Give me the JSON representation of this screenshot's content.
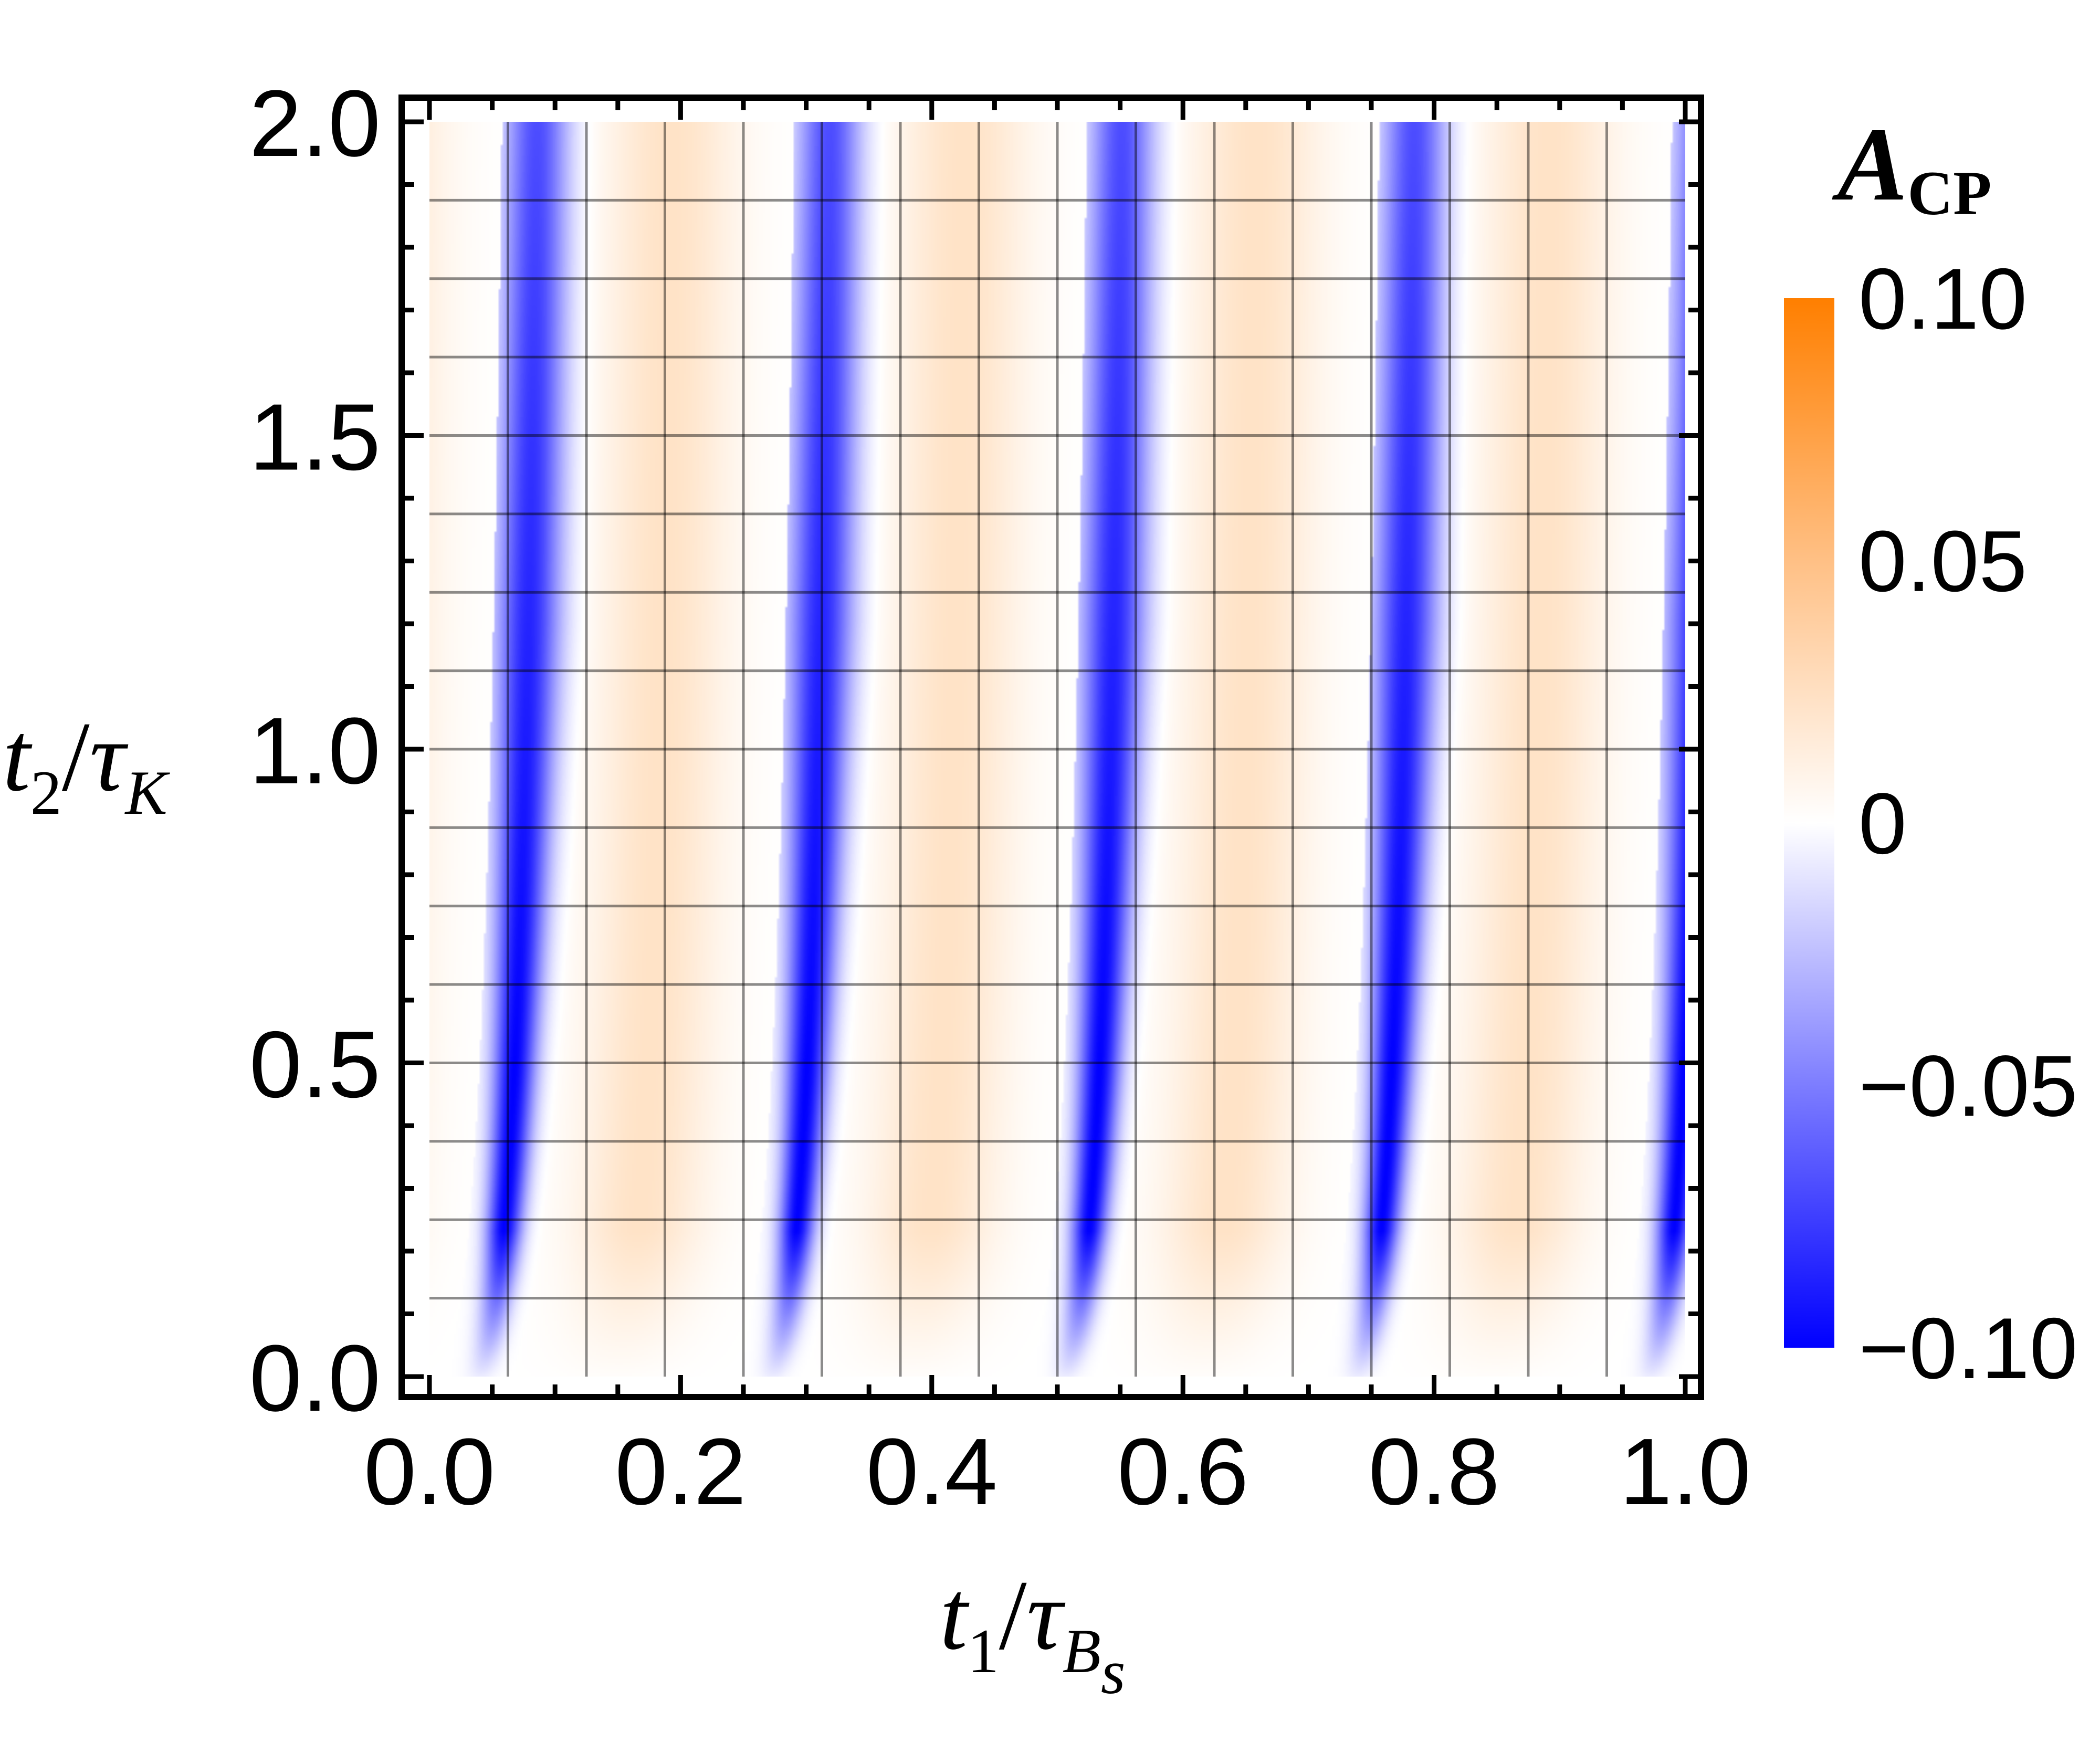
{
  "chart_data": {
    "type": "heatmap",
    "xlabel": {
      "symbol": "t",
      "sub": "1",
      "sep": "/",
      "tau": "τ",
      "tau_sub": "B",
      "tau_subsub": "s"
    },
    "ylabel": {
      "symbol": "t",
      "sub": "2",
      "sep": "/",
      "tau": "τ",
      "tau_sub": "K"
    },
    "xlim": [
      0.0,
      1.0
    ],
    "ylim": [
      0.0,
      2.0
    ],
    "x_ticks": [
      "0.0",
      "0.2",
      "0.4",
      "0.6",
      "0.8",
      "1.0"
    ],
    "y_ticks": [
      "0.0",
      "0.5",
      "1.0",
      "1.5",
      "2.0"
    ],
    "x_tick_values": [
      0.0,
      0.2,
      0.4,
      0.6,
      0.8,
      1.0
    ],
    "y_tick_values": [
      0.0,
      0.5,
      1.0,
      1.5,
      2.0
    ],
    "grid": true,
    "grid_x_values": [
      0.0625,
      0.125,
      0.1875,
      0.25,
      0.3125,
      0.375,
      0.4375,
      0.5,
      0.5625,
      0.625,
      0.6875,
      0.75,
      0.8125,
      0.875,
      0.9375
    ],
    "grid_y_values": [
      0.125,
      0.25,
      0.375,
      0.5,
      0.625,
      0.75,
      0.875,
      1.0,
      1.125,
      1.25,
      1.375,
      1.5,
      1.625,
      1.75,
      1.875
    ],
    "colorbar": {
      "title": "A",
      "title_sub": "CP",
      "range": [
        -0.1,
        0.1
      ],
      "ticks": [
        "0.10",
        "0.05",
        "0",
        "−0.05",
        "−0.10"
      ],
      "tick_values": [
        0.1,
        0.05,
        0.0,
        -0.05,
        -0.1
      ],
      "color_low": "#0000ff",
      "color_mid": "#ffffff",
      "color_high": "#ff7f00"
    },
    "pattern": {
      "description_values": "oscillation in t1 with period ~0.233, negative peak (-0.1) near t2≈0, spreading to about -0.06 at large t2",
      "period_t1": 0.2333,
      "band_centers_at_top": [
        0.015,
        0.265,
        0.5,
        0.72,
        0.985
      ],
      "min_value": -0.1,
      "max_value": 0.03
    }
  }
}
